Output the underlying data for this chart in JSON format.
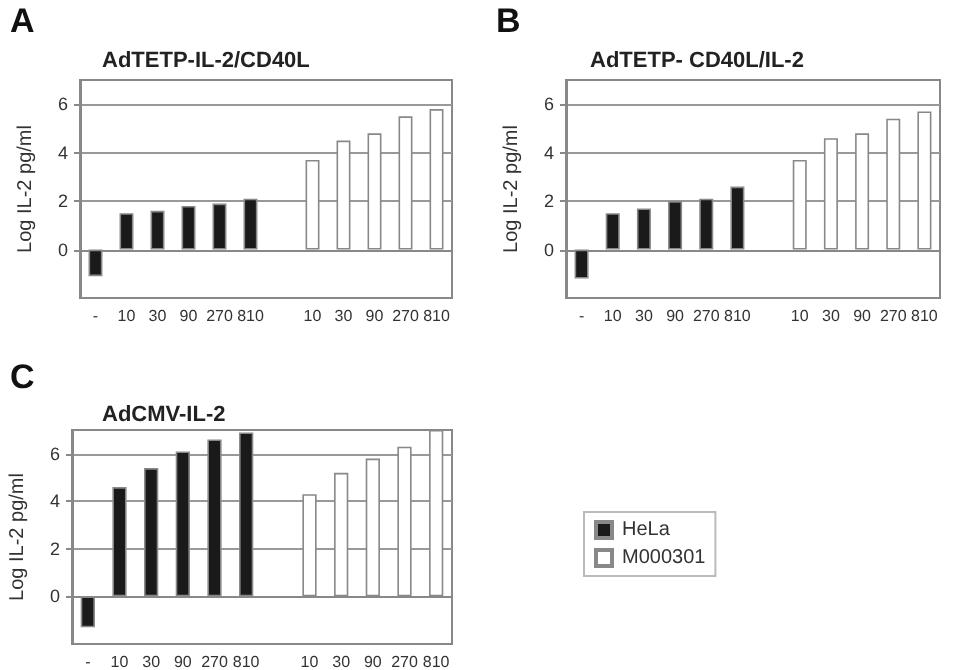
{
  "chart_data": [
    {
      "type": "bar",
      "title": "AdTETP-IL-2/CD40L",
      "ylabel": "Log IL-2 pg/ml",
      "annotations": [
        "A"
      ],
      "categories": [
        "-",
        "10",
        "30",
        "90",
        "270",
        "810",
        null,
        "10",
        "30",
        "90",
        "270",
        "810"
      ],
      "series": [
        {
          "color": "#1a1a1a",
          "values": [
            -1.1,
            1.5,
            1.6,
            1.8,
            1.9,
            2.1,
            null,
            null,
            null,
            null,
            null,
            null
          ]
        },
        {
          "color": "#ffffff",
          "values": [
            null,
            null,
            null,
            null,
            null,
            null,
            null,
            3.7,
            4.5,
            4.8,
            5.5,
            5.8
          ]
        }
      ],
      "ylim": [
        -2,
        7
      ],
      "yticks": [
        0,
        2,
        4,
        6
      ],
      "grid": "y",
      "legend": false
    },
    {
      "type": "bar",
      "title": "AdTETP- CD40L/IL-2",
      "ylabel": "Log IL-2 pg/ml",
      "annotations": [
        "B"
      ],
      "categories": [
        "-",
        "10",
        "30",
        "90",
        "270",
        "810",
        null,
        "10",
        "30",
        "90",
        "270",
        "810"
      ],
      "series": [
        {
          "color": "#1a1a1a",
          "values": [
            -1.2,
            1.5,
            1.7,
            2.0,
            2.1,
            2.6,
            null,
            null,
            null,
            null,
            null,
            null
          ]
        },
        {
          "color": "#ffffff",
          "values": [
            null,
            null,
            null,
            null,
            null,
            null,
            null,
            3.7,
            4.6,
            4.8,
            5.4,
            5.7
          ]
        }
      ],
      "ylim": [
        -2,
        7
      ],
      "yticks": [
        0,
        2,
        4,
        6
      ],
      "grid": "y",
      "legend": false
    },
    {
      "type": "bar",
      "title": "AdCMV-IL-2",
      "ylabel": "Log IL-2 pg/ml",
      "annotations": [
        "C"
      ],
      "categories": [
        "-",
        "10",
        "30",
        "90",
        "270",
        "810",
        null,
        "10",
        "30",
        "90",
        "270",
        "810"
      ],
      "series": [
        {
          "name": "HeLa",
          "color": "#1a1a1a",
          "values": [
            -1.3,
            4.6,
            5.4,
            6.1,
            6.6,
            6.9,
            null,
            null,
            null,
            null,
            null,
            null
          ]
        },
        {
          "name": "M000301",
          "color": "#ffffff",
          "values": [
            null,
            null,
            null,
            null,
            null,
            null,
            null,
            4.3,
            5.2,
            5.8,
            6.3,
            7.0
          ]
        }
      ],
      "ylim": [
        -2,
        7
      ],
      "yticks": [
        0,
        2,
        4,
        6
      ],
      "grid": "y",
      "legend": "right"
    }
  ]
}
